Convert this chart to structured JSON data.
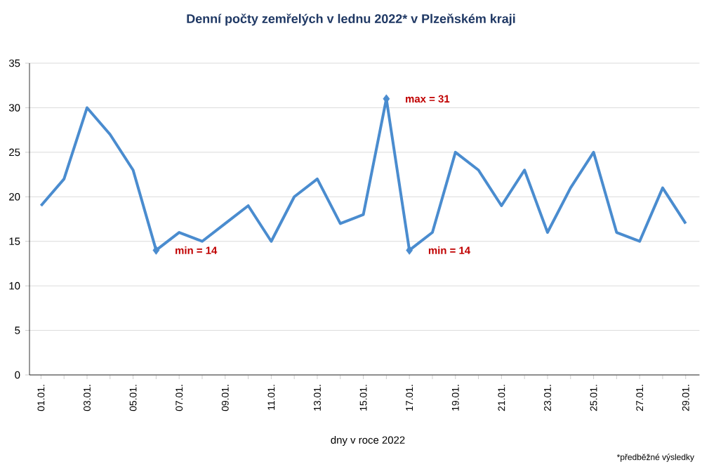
{
  "chart_data": {
    "type": "line",
    "title": "Denní počty zemřelých v lednu 2022*  v Plzeňském kraji",
    "xlabel": "dny v roce 2022",
    "categories": [
      "01.01.",
      null,
      "03.01.",
      null,
      "05.01.",
      null,
      "07.01.",
      null,
      "09.01.",
      null,
      "11.01.",
      null,
      "13.01.",
      null,
      "15.01.",
      null,
      "17.01.",
      null,
      "19.01.",
      null,
      "21.01.",
      null,
      "23.01.",
      null,
      "25.01.",
      null,
      "27.01.",
      null,
      "29.01."
    ],
    "values": [
      19,
      22,
      30,
      27,
      23,
      14,
      16,
      15,
      17,
      19,
      15,
      20,
      22,
      17,
      18,
      31,
      14,
      16,
      25,
      23,
      19,
      23,
      16,
      21,
      25,
      16,
      15,
      21,
      17
    ],
    "color": "#4a8ccf",
    "ylim": [
      0,
      35
    ],
    "yticks": [
      0,
      5,
      10,
      15,
      20,
      25,
      30,
      35
    ],
    "grid": "y",
    "marker": "none",
    "annotations": [
      "min = 14",
      "max = 31",
      "min = 14",
      "*předběžné výsledky"
    ]
  }
}
